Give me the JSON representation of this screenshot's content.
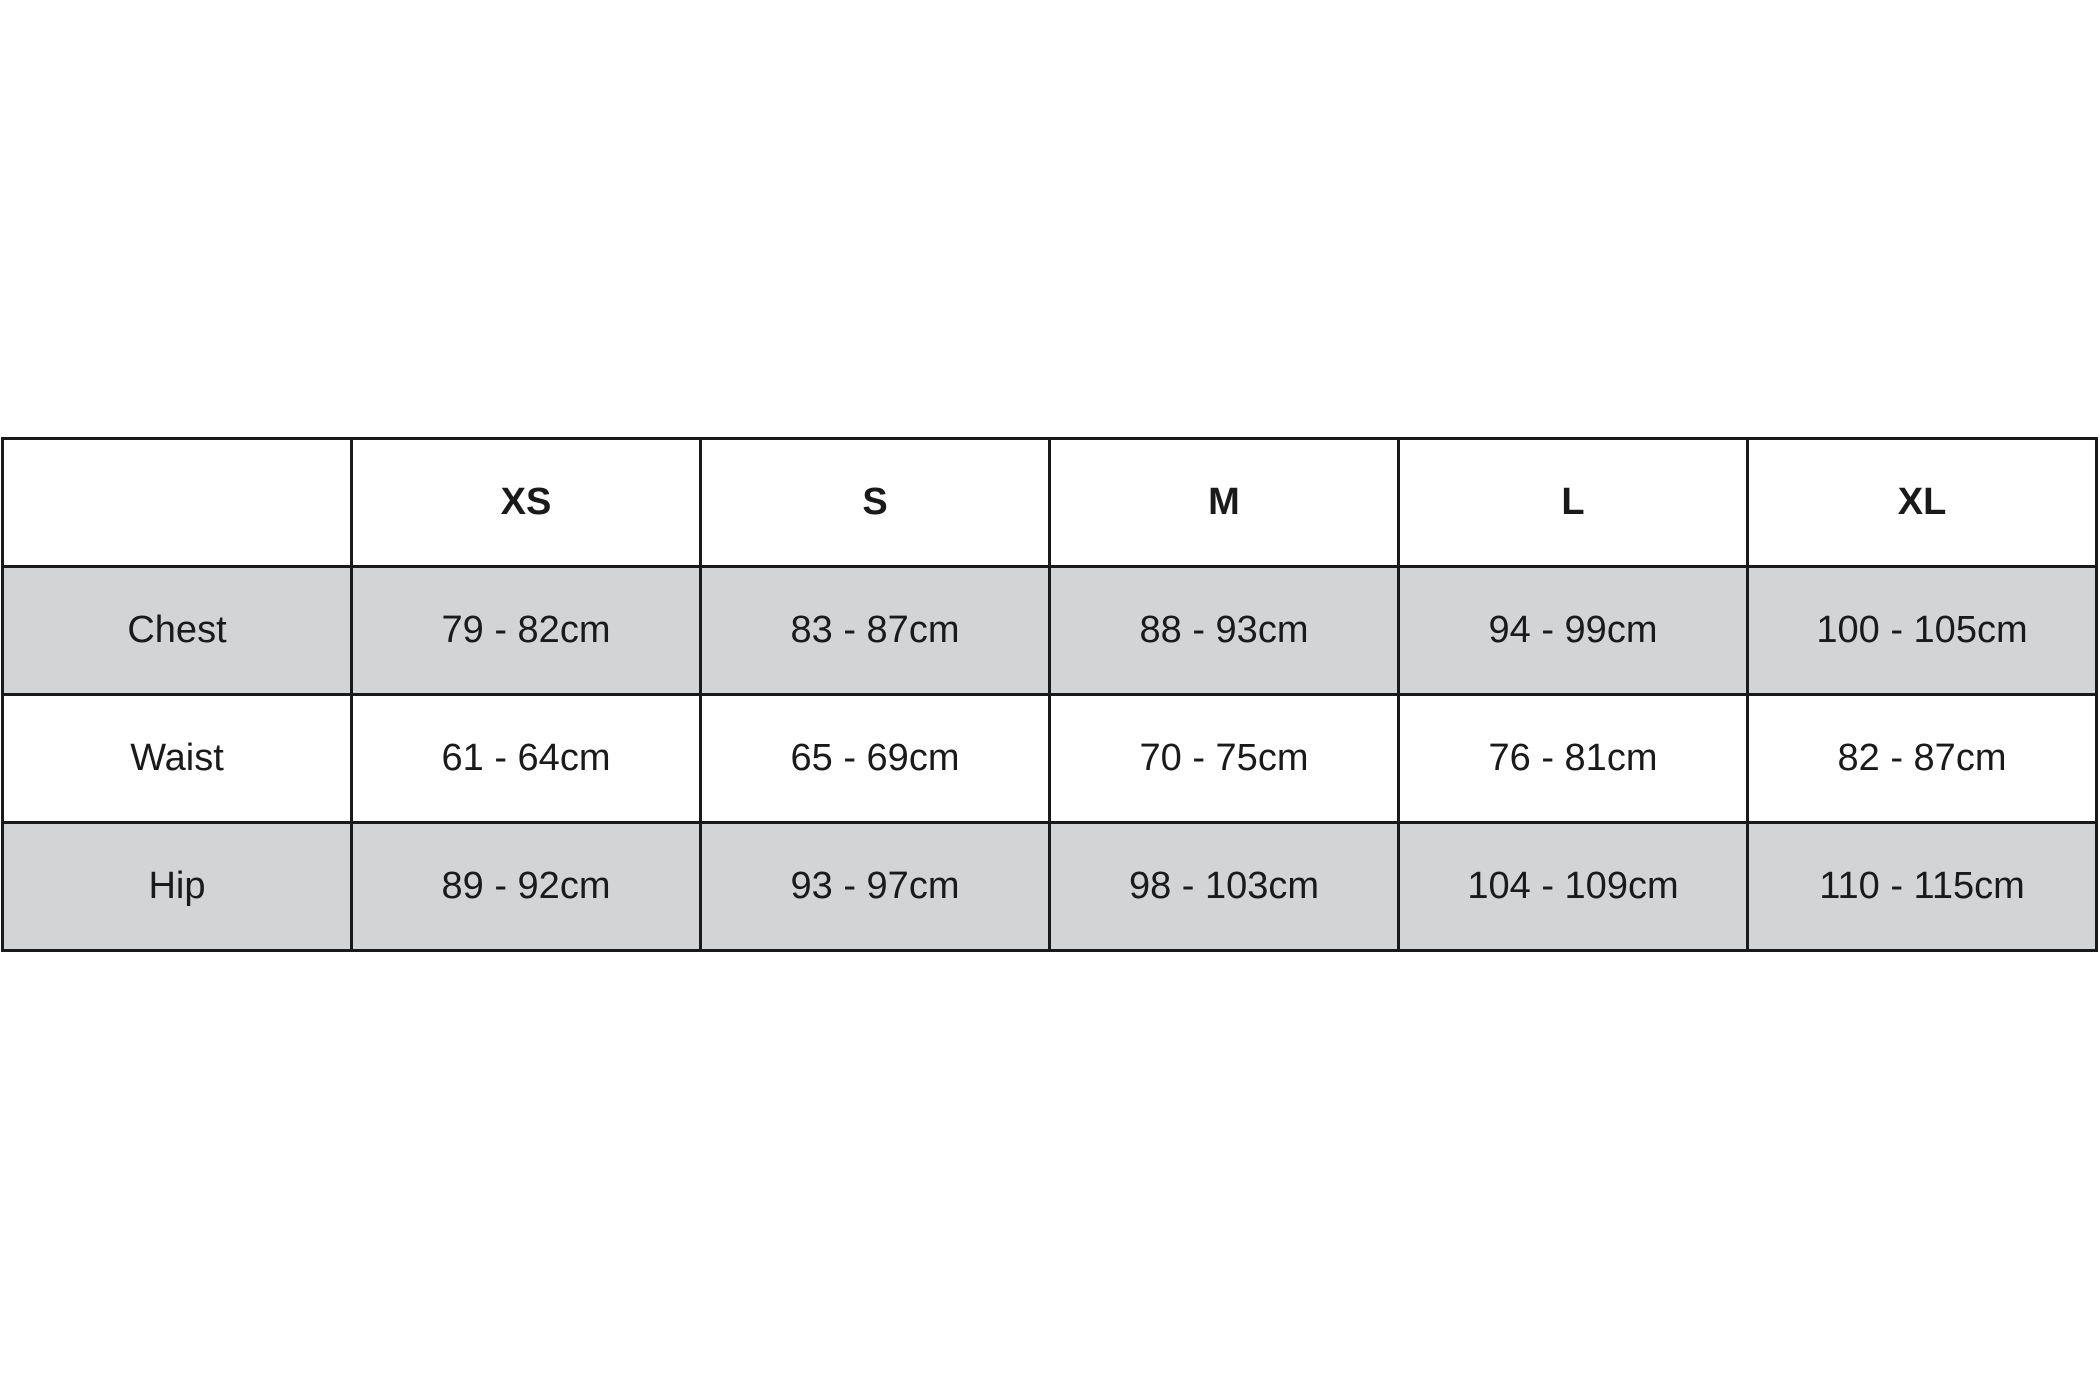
{
  "size_chart": {
    "colors": {
      "shaded_row": "#d3d4d6",
      "border": "#1a1a1a"
    },
    "headers": [
      "",
      "XS",
      "S",
      "M",
      "L",
      "XL"
    ],
    "rows": [
      {
        "label": "Chest",
        "values": [
          "79 - 82cm",
          "83 - 87cm",
          "88 - 93cm",
          "94 - 99cm",
          "100 - 105cm"
        ]
      },
      {
        "label": "Waist",
        "values": [
          "61 - 64cm",
          "65 - 69cm",
          "70 - 75cm",
          "76 - 81cm",
          "82 - 87cm"
        ]
      },
      {
        "label": "Hip",
        "values": [
          "89 - 92cm",
          "93 - 97cm",
          "98 - 103cm",
          "104 - 109cm",
          "110 - 115cm"
        ]
      }
    ]
  }
}
